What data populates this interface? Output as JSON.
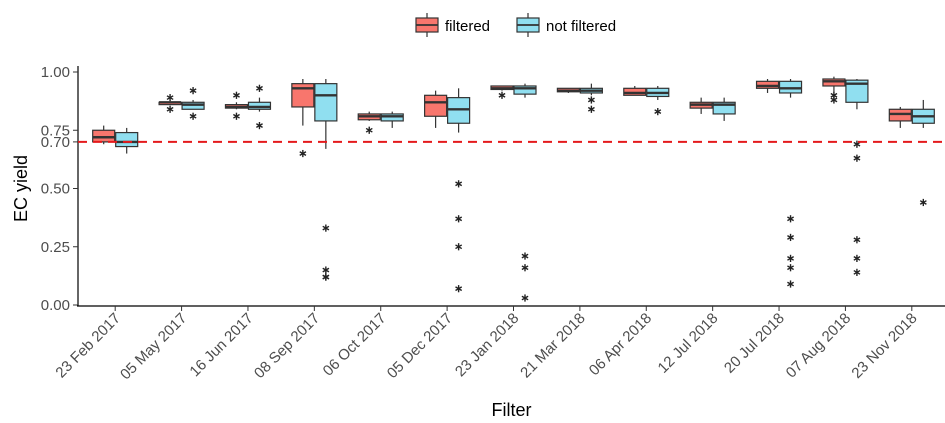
{
  "chart_data": {
    "type": "boxplot",
    "xlabel": "Filter",
    "ylabel": "EC yield",
    "ylim": [
      0,
      1
    ],
    "yticks": [
      "0.00",
      "0.25",
      "0.50",
      "0.70",
      "0.75",
      "1.00"
    ],
    "ytick_values": [
      0,
      0.25,
      0.5,
      0.7,
      0.75,
      1.0
    ],
    "reference_line": {
      "value": 0.7,
      "color": "#e41a1c",
      "style": "dashed"
    },
    "grid": false,
    "legend_position": "top",
    "categories": [
      "23 Feb 2017",
      "05 May 2017",
      "16 Jun 2017",
      "08 Sep 2017",
      "06 Oct 2017",
      "05 Dec 2017",
      "23 Jan 2018",
      "21 Mar 2018",
      "06 Apr 2018",
      "12 Jul 2018",
      "20 Jul 2018",
      "07 Aug 2018",
      "23 Nov 2018"
    ],
    "series": [
      {
        "name": "filtered",
        "color": "#f8766d",
        "boxes": [
          {
            "whislo": 0.69,
            "q1": 0.7,
            "med": 0.72,
            "q3": 0.75,
            "whishi": 0.77,
            "outliers": []
          },
          {
            "whislo": 0.86,
            "q1": 0.86,
            "med": 0.87,
            "q3": 0.87,
            "whishi": 0.87,
            "outliers": [
              0.89,
              0.84
            ]
          },
          {
            "whislo": 0.84,
            "q1": 0.845,
            "med": 0.85,
            "q3": 0.86,
            "whishi": 0.87,
            "outliers": [
              0.9,
              0.81
            ]
          },
          {
            "whislo": 0.77,
            "q1": 0.85,
            "med": 0.93,
            "q3": 0.95,
            "whishi": 0.97,
            "outliers": [
              0.65
            ]
          },
          {
            "whislo": 0.79,
            "q1": 0.795,
            "med": 0.81,
            "q3": 0.82,
            "whishi": 0.83,
            "outliers": [
              0.75
            ]
          },
          {
            "whislo": 0.76,
            "q1": 0.81,
            "med": 0.87,
            "q3": 0.9,
            "whishi": 0.92,
            "outliers": []
          },
          {
            "whislo": 0.92,
            "q1": 0.925,
            "med": 0.93,
            "q3": 0.94,
            "whishi": 0.94,
            "outliers": [
              0.9
            ]
          },
          {
            "whislo": 0.91,
            "q1": 0.915,
            "med": 0.92,
            "q3": 0.93,
            "whishi": 0.93,
            "outliers": []
          },
          {
            "whislo": 0.9,
            "q1": 0.9,
            "med": 0.91,
            "q3": 0.93,
            "whishi": 0.94,
            "outliers": []
          },
          {
            "whislo": 0.82,
            "q1": 0.845,
            "med": 0.86,
            "q3": 0.87,
            "whishi": 0.89,
            "outliers": []
          },
          {
            "whislo": 0.91,
            "q1": 0.93,
            "med": 0.94,
            "q3": 0.96,
            "whishi": 0.97,
            "outliers": []
          },
          {
            "whislo": 0.91,
            "q1": 0.94,
            "med": 0.96,
            "q3": 0.97,
            "whishi": 0.98,
            "outliers": [
              0.88,
              0.9
            ]
          },
          {
            "whislo": 0.76,
            "q1": 0.79,
            "med": 0.82,
            "q3": 0.84,
            "whishi": 0.85,
            "outliers": []
          }
        ]
      },
      {
        "name": "not filtered",
        "color": "#90dff0",
        "boxes": [
          {
            "whislo": 0.65,
            "q1": 0.68,
            "med": 0.7,
            "q3": 0.74,
            "whishi": 0.76,
            "outliers": []
          },
          {
            "whislo": 0.84,
            "q1": 0.84,
            "med": 0.86,
            "q3": 0.87,
            "whishi": 0.88,
            "outliers": [
              0.92,
              0.81
            ]
          },
          {
            "whislo": 0.83,
            "q1": 0.84,
            "med": 0.85,
            "q3": 0.87,
            "whishi": 0.89,
            "outliers": [
              0.93,
              0.77
            ]
          },
          {
            "whislo": 0.67,
            "q1": 0.79,
            "med": 0.9,
            "q3": 0.95,
            "whishi": 0.97,
            "outliers": [
              0.33,
              0.15,
              0.12,
              0.12
            ]
          },
          {
            "whislo": 0.76,
            "q1": 0.79,
            "med": 0.81,
            "q3": 0.82,
            "whishi": 0.83,
            "outliers": []
          },
          {
            "whislo": 0.74,
            "q1": 0.78,
            "med": 0.84,
            "q3": 0.89,
            "whishi": 0.93,
            "outliers": [
              0.52,
              0.37,
              0.25,
              0.07
            ]
          },
          {
            "whislo": 0.89,
            "q1": 0.905,
            "med": 0.93,
            "q3": 0.94,
            "whishi": 0.95,
            "outliers": [
              0.21,
              0.16,
              0.03
            ]
          },
          {
            "whislo": 0.9,
            "q1": 0.91,
            "med": 0.92,
            "q3": 0.93,
            "whishi": 0.95,
            "outliers": [
              0.88,
              0.84
            ]
          },
          {
            "whislo": 0.88,
            "q1": 0.895,
            "med": 0.91,
            "q3": 0.93,
            "whishi": 0.94,
            "outliers": [
              0.83
            ]
          },
          {
            "whislo": 0.79,
            "q1": 0.82,
            "med": 0.86,
            "q3": 0.87,
            "whishi": 0.89,
            "outliers": []
          },
          {
            "whislo": 0.89,
            "q1": 0.91,
            "med": 0.93,
            "q3": 0.96,
            "whishi": 0.97,
            "outliers": [
              0.37,
              0.29,
              0.2,
              0.16,
              0.09
            ]
          },
          {
            "whislo": 0.84,
            "q1": 0.87,
            "med": 0.95,
            "q3": 0.965,
            "whishi": 0.97,
            "outliers": [
              0.69,
              0.63,
              0.28,
              0.2,
              0.14
            ]
          },
          {
            "whislo": 0.76,
            "q1": 0.78,
            "med": 0.81,
            "q3": 0.84,
            "whishi": 0.88,
            "outliers": [
              0.44
            ]
          }
        ]
      }
    ]
  }
}
